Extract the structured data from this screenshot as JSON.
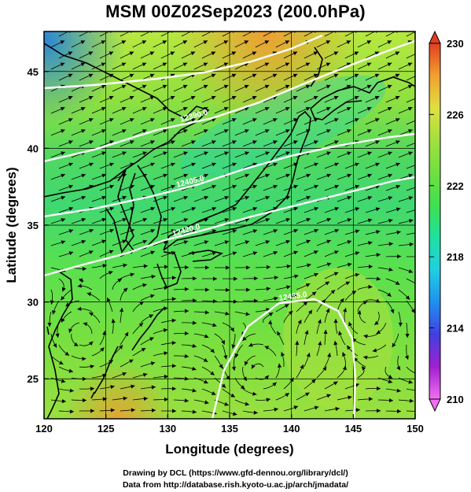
{
  "title": "MSM 00Z02Sep2023 (200.0hPa)",
  "credits": {
    "line1": "Drawing by DCL (https://www.gfd-dennou.org/library/dcl/)",
    "line2": "Data from http://database.rish.kyoto-u.ac.jp/arch/jmadata/"
  },
  "map": {
    "xlabel": "Longitude (degrees)",
    "ylabel": "Latitude  (degrees)",
    "lon_range": [
      120,
      150
    ],
    "lat_range": [
      22.4,
      47.6
    ],
    "lon_ticks": [
      "120",
      "125",
      "130",
      "135",
      "140",
      "145",
      "150"
    ],
    "lat_ticks": [
      "25",
      "30",
      "35",
      "40",
      "45"
    ],
    "grid": true,
    "contour_labels": [
      "12390.0",
      "12405.0",
      "12420.0",
      "12435.0"
    ]
  },
  "colorbar": {
    "min": 210,
    "max": 230,
    "tick_labels": [
      "230",
      "226",
      "222",
      "218",
      "214",
      "210"
    ],
    "colors": [
      "#f070f0",
      "#a020d0",
      "#4040e0",
      "#2090f0",
      "#20d0e0",
      "#20e0a0",
      "#40e050",
      "#70e040",
      "#a0e040",
      "#e0e040",
      "#f0a030",
      "#e04020"
    ]
  }
}
